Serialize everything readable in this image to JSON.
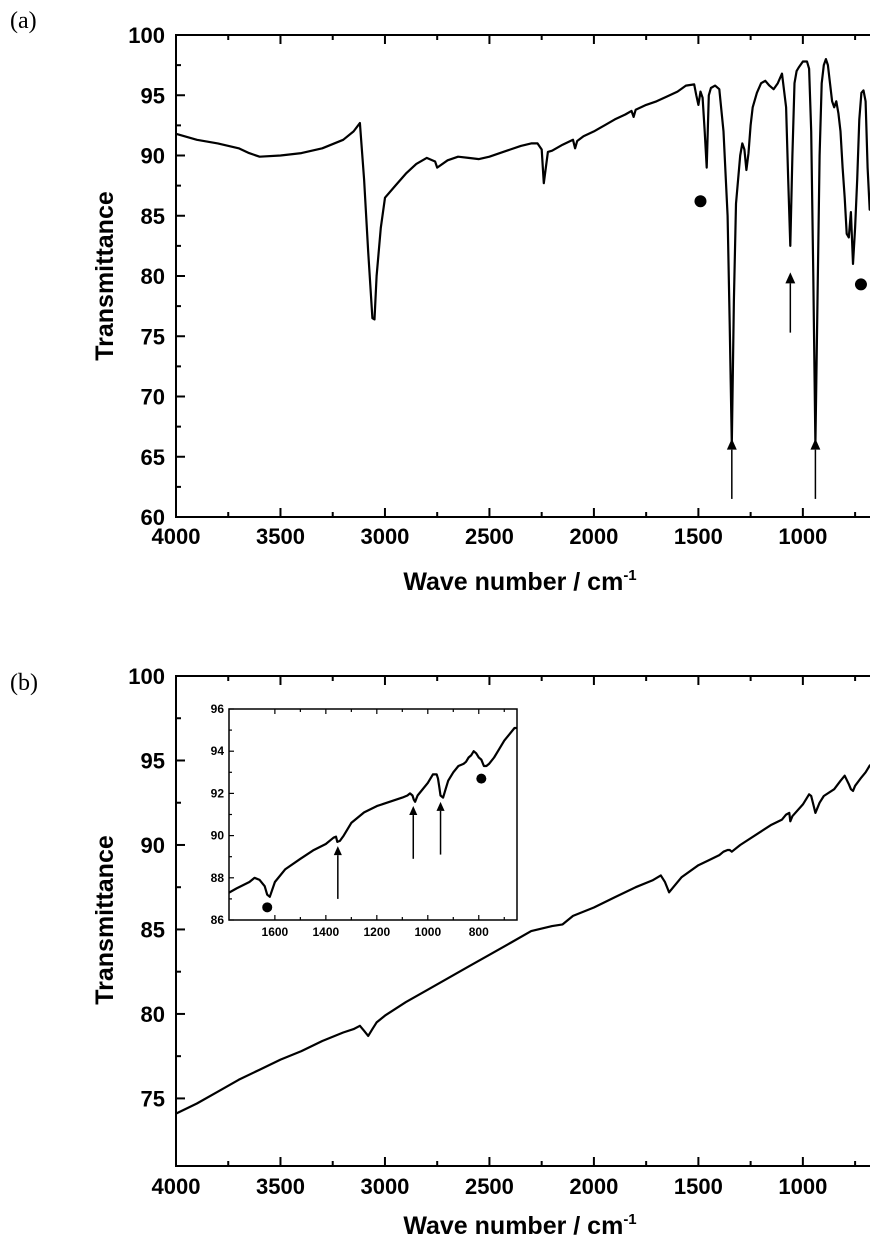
{
  "chart_data": [
    {
      "panel_label": "(a)",
      "type": "line",
      "xlabel": "Wave number / cm",
      "xlabel_sup": "-1",
      "ylabel": "Transmittance",
      "xlim": [
        4000,
        650
      ],
      "ylim": [
        60,
        100
      ],
      "xticks": [
        4000,
        3500,
        3000,
        2500,
        2000,
        1500,
        1000
      ],
      "yticks": [
        60,
        65,
        70,
        75,
        80,
        85,
        90,
        95,
        100
      ],
      "series": [
        {
          "x": [
            4000,
            3900,
            3800,
            3700,
            3650,
            3600,
            3500,
            3400,
            3300,
            3200,
            3150,
            3120,
            3100,
            3080,
            3060,
            3050,
            3040,
            3020,
            3000,
            2950,
            2900,
            2850,
            2800,
            2760,
            2750,
            2700,
            2650,
            2600,
            2550,
            2500,
            2450,
            2400,
            2350,
            2300,
            2270,
            2250,
            2240,
            2220,
            2200,
            2150,
            2100,
            2090,
            2080,
            2050,
            2000,
            1950,
            1900,
            1850,
            1820,
            1810,
            1800,
            1750,
            1700,
            1650,
            1600,
            1560,
            1520,
            1510,
            1500,
            1490,
            1480,
            1470,
            1460,
            1450,
            1440,
            1420,
            1400,
            1380,
            1360,
            1350,
            1340,
            1330,
            1320,
            1300,
            1290,
            1280,
            1270,
            1260,
            1250,
            1240,
            1220,
            1200,
            1180,
            1160,
            1140,
            1120,
            1100,
            1080,
            1070,
            1060,
            1050,
            1040,
            1030,
            1020,
            1000,
            980,
            970,
            960,
            950,
            940,
            930,
            920,
            910,
            900,
            890,
            880,
            870,
            860,
            850,
            840,
            830,
            820,
            810,
            800,
            790,
            780,
            770,
            760,
            750,
            740,
            730,
            720,
            710,
            700,
            690,
            680,
            670,
            660,
            650
          ],
          "y": [
            91.8,
            91.3,
            91.0,
            90.6,
            90.2,
            89.9,
            90.0,
            90.2,
            90.6,
            91.3,
            92.0,
            92.7,
            88.0,
            82.0,
            76.5,
            76.4,
            80.0,
            84.0,
            86.5,
            87.5,
            88.5,
            89.3,
            89.8,
            89.5,
            89.0,
            89.6,
            89.9,
            89.8,
            89.7,
            89.9,
            90.2,
            90.5,
            90.8,
            91.0,
            91.0,
            90.5,
            87.7,
            90.3,
            90.4,
            90.9,
            91.3,
            90.6,
            91.2,
            91.6,
            92.0,
            92.5,
            93.0,
            93.4,
            93.7,
            93.2,
            93.8,
            94.2,
            94.5,
            94.9,
            95.3,
            95.8,
            95.9,
            95.0,
            94.2,
            95.3,
            94.8,
            92.0,
            89.0,
            95.0,
            95.6,
            95.8,
            95.5,
            92.0,
            85.0,
            76.0,
            66.0,
            78.0,
            86.0,
            90.0,
            91.0,
            90.5,
            88.8,
            90.2,
            92.5,
            94.0,
            95.2,
            96.0,
            96.2,
            95.8,
            95.5,
            96.0,
            96.8,
            94.0,
            88.0,
            82.5,
            90.0,
            96.0,
            97.0,
            97.3,
            97.8,
            97.8,
            97.2,
            92.0,
            80.0,
            66.0,
            78.0,
            90.0,
            96.0,
            97.5,
            98.0,
            97.5,
            96.0,
            94.5,
            94.0,
            94.5,
            93.5,
            92.0,
            89.0,
            86.5,
            83.5,
            83.2,
            85.3,
            81.0,
            84.0,
            88.0,
            93.0,
            95.2,
            95.4,
            94.5,
            89.0,
            85.5,
            87.0,
            90.0,
            92.0
          ]
        }
      ],
      "markers": [
        {
          "kind": "dot",
          "x": 1490,
          "y": 86.2
        },
        {
          "kind": "dot",
          "x": 722,
          "y": 79.3
        }
      ],
      "arrows": [
        {
          "x": 1340,
          "y_tip": 66.5,
          "y_tail": 61.5
        },
        {
          "x": 1060,
          "y_tip": 80.3,
          "y_tail": 75.3
        },
        {
          "x": 940,
          "y_tip": 66.5,
          "y_tail": 61.5
        }
      ]
    },
    {
      "panel_label": "(b)",
      "type": "line",
      "xlabel": "Wave number / cm",
      "xlabel_sup": "-1",
      "ylabel": "Transmittance",
      "xlim": [
        4000,
        650
      ],
      "ylim": [
        71,
        100
      ],
      "xticks": [
        4000,
        3500,
        3000,
        2500,
        2000,
        1500,
        1000
      ],
      "yticks": [
        75,
        80,
        85,
        90,
        95,
        100
      ],
      "series": [
        {
          "x": [
            4000,
            3900,
            3800,
            3700,
            3600,
            3500,
            3400,
            3300,
            3200,
            3150,
            3120,
            3100,
            3080,
            3060,
            3040,
            3000,
            2900,
            2800,
            2700,
            2600,
            2500,
            2400,
            2300,
            2200,
            2150,
            2100,
            2000,
            1900,
            1800,
            1720,
            1680,
            1660,
            1640,
            1620,
            1580,
            1500,
            1450,
            1400,
            1380,
            1360,
            1350,
            1340,
            1300,
            1200,
            1150,
            1100,
            1080,
            1065,
            1060,
            1050,
            1000,
            970,
            960,
            950,
            940,
            920,
            900,
            850,
            820,
            800,
            780,
            770,
            760,
            750,
            720,
            700,
            680,
            650
          ],
          "y": [
            74.1,
            74.7,
            75.4,
            76.1,
            76.7,
            77.3,
            77.8,
            78.4,
            78.9,
            79.1,
            79.3,
            79.0,
            78.7,
            79.1,
            79.5,
            79.9,
            80.7,
            81.4,
            82.1,
            82.8,
            83.5,
            84.2,
            84.9,
            85.2,
            85.3,
            85.8,
            86.3,
            86.9,
            87.5,
            87.9,
            88.2,
            87.8,
            87.2,
            87.5,
            88.1,
            88.8,
            89.1,
            89.4,
            89.6,
            89.7,
            89.7,
            89.6,
            90.0,
            90.8,
            91.2,
            91.5,
            91.8,
            91.9,
            91.4,
            91.7,
            92.4,
            93.0,
            92.9,
            92.4,
            91.9,
            92.5,
            92.9,
            93.3,
            93.8,
            94.1,
            93.6,
            93.3,
            93.2,
            93.5,
            94.0,
            94.3,
            94.7,
            95.0
          ]
        }
      ],
      "inset": {
        "type": "line",
        "xlim": [
          1780,
          650
        ],
        "ylim": [
          86,
          96
        ],
        "xticks": [
          1600,
          1400,
          1200,
          1000,
          800
        ],
        "yticks": [
          86,
          88,
          90,
          92,
          94,
          96
        ],
        "series": [
          {
            "x": [
              1780,
              1750,
              1700,
              1680,
              1660,
              1640,
              1630,
              1620,
              1600,
              1560,
              1500,
              1450,
              1400,
              1380,
              1370,
              1360,
              1355,
              1345,
              1330,
              1300,
              1250,
              1200,
              1150,
              1100,
              1080,
              1070,
              1060,
              1055,
              1050,
              1040,
              1000,
              980,
              965,
              960,
              955,
              950,
              940,
              930,
              920,
              900,
              880,
              860,
              850,
              840,
              830,
              820,
              810,
              800,
              790,
              780,
              770,
              760,
              740,
              720,
              700,
              680,
              660,
              650
            ],
            "y": [
              87.3,
              87.5,
              87.8,
              88.0,
              87.9,
              87.6,
              87.2,
              87.1,
              87.8,
              88.4,
              88.9,
              89.3,
              89.6,
              89.8,
              89.9,
              89.95,
              89.7,
              89.75,
              90.0,
              90.6,
              91.1,
              91.4,
              91.6,
              91.8,
              91.9,
              92.0,
              91.9,
              91.7,
              91.6,
              91.9,
              92.5,
              92.9,
              92.9,
              92.7,
              92.3,
              91.9,
              91.8,
              92.2,
              92.6,
              93.0,
              93.3,
              93.4,
              93.5,
              93.7,
              93.8,
              94.0,
              93.9,
              93.7,
              93.6,
              93.3,
              93.3,
              93.4,
              93.7,
              94.1,
              94.5,
              94.8,
              95.1,
              95.1
            ]
          }
        ],
        "markers": [
          {
            "kind": "dot",
            "x": 1630,
            "y": 86.6
          },
          {
            "kind": "dot",
            "x": 790,
            "y": 92.7
          }
        ],
        "arrows": [
          {
            "x": 1353,
            "y_tip": 89.5,
            "y_tail": 87.0
          },
          {
            "x": 1057,
            "y_tip": 91.4,
            "y_tail": 88.9
          },
          {
            "x": 950,
            "y_tip": 91.6,
            "y_tail": 89.1
          }
        ]
      }
    }
  ]
}
